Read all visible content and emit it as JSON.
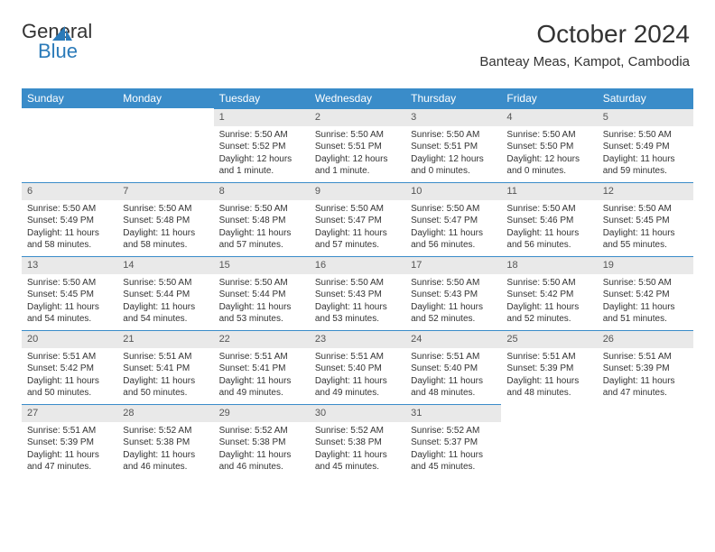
{
  "logo": {
    "text1": "General",
    "text2": "Blue"
  },
  "header": {
    "title": "October 2024",
    "subtitle": "Banteay Meas, Kampot, Cambodia"
  },
  "colors": {
    "header_bg": "#3a8cc9",
    "header_text": "#ffffff",
    "daynum_bg": "#e9e9e9",
    "border": "#3a8cc9",
    "text": "#333333",
    "logo_blue": "#2a7ab9"
  },
  "weekdays": [
    "Sunday",
    "Monday",
    "Tuesday",
    "Wednesday",
    "Thursday",
    "Friday",
    "Saturday"
  ],
  "weeks": [
    [
      {
        "n": "",
        "l": [
          "",
          "",
          ""
        ]
      },
      {
        "n": "",
        "l": [
          "",
          "",
          ""
        ]
      },
      {
        "n": "1",
        "l": [
          "Sunrise: 5:50 AM",
          "Sunset: 5:52 PM",
          "Daylight: 12 hours and 1 minute."
        ]
      },
      {
        "n": "2",
        "l": [
          "Sunrise: 5:50 AM",
          "Sunset: 5:51 PM",
          "Daylight: 12 hours and 1 minute."
        ]
      },
      {
        "n": "3",
        "l": [
          "Sunrise: 5:50 AM",
          "Sunset: 5:51 PM",
          "Daylight: 12 hours and 0 minutes."
        ]
      },
      {
        "n": "4",
        "l": [
          "Sunrise: 5:50 AM",
          "Sunset: 5:50 PM",
          "Daylight: 12 hours and 0 minutes."
        ]
      },
      {
        "n": "5",
        "l": [
          "Sunrise: 5:50 AM",
          "Sunset: 5:49 PM",
          "Daylight: 11 hours and 59 minutes."
        ]
      }
    ],
    [
      {
        "n": "6",
        "l": [
          "Sunrise: 5:50 AM",
          "Sunset: 5:49 PM",
          "Daylight: 11 hours and 58 minutes."
        ]
      },
      {
        "n": "7",
        "l": [
          "Sunrise: 5:50 AM",
          "Sunset: 5:48 PM",
          "Daylight: 11 hours and 58 minutes."
        ]
      },
      {
        "n": "8",
        "l": [
          "Sunrise: 5:50 AM",
          "Sunset: 5:48 PM",
          "Daylight: 11 hours and 57 minutes."
        ]
      },
      {
        "n": "9",
        "l": [
          "Sunrise: 5:50 AM",
          "Sunset: 5:47 PM",
          "Daylight: 11 hours and 57 minutes."
        ]
      },
      {
        "n": "10",
        "l": [
          "Sunrise: 5:50 AM",
          "Sunset: 5:47 PM",
          "Daylight: 11 hours and 56 minutes."
        ]
      },
      {
        "n": "11",
        "l": [
          "Sunrise: 5:50 AM",
          "Sunset: 5:46 PM",
          "Daylight: 11 hours and 56 minutes."
        ]
      },
      {
        "n": "12",
        "l": [
          "Sunrise: 5:50 AM",
          "Sunset: 5:45 PM",
          "Daylight: 11 hours and 55 minutes."
        ]
      }
    ],
    [
      {
        "n": "13",
        "l": [
          "Sunrise: 5:50 AM",
          "Sunset: 5:45 PM",
          "Daylight: 11 hours and 54 minutes."
        ]
      },
      {
        "n": "14",
        "l": [
          "Sunrise: 5:50 AM",
          "Sunset: 5:44 PM",
          "Daylight: 11 hours and 54 minutes."
        ]
      },
      {
        "n": "15",
        "l": [
          "Sunrise: 5:50 AM",
          "Sunset: 5:44 PM",
          "Daylight: 11 hours and 53 minutes."
        ]
      },
      {
        "n": "16",
        "l": [
          "Sunrise: 5:50 AM",
          "Sunset: 5:43 PM",
          "Daylight: 11 hours and 53 minutes."
        ]
      },
      {
        "n": "17",
        "l": [
          "Sunrise: 5:50 AM",
          "Sunset: 5:43 PM",
          "Daylight: 11 hours and 52 minutes."
        ]
      },
      {
        "n": "18",
        "l": [
          "Sunrise: 5:50 AM",
          "Sunset: 5:42 PM",
          "Daylight: 11 hours and 52 minutes."
        ]
      },
      {
        "n": "19",
        "l": [
          "Sunrise: 5:50 AM",
          "Sunset: 5:42 PM",
          "Daylight: 11 hours and 51 minutes."
        ]
      }
    ],
    [
      {
        "n": "20",
        "l": [
          "Sunrise: 5:51 AM",
          "Sunset: 5:42 PM",
          "Daylight: 11 hours and 50 minutes."
        ]
      },
      {
        "n": "21",
        "l": [
          "Sunrise: 5:51 AM",
          "Sunset: 5:41 PM",
          "Daylight: 11 hours and 50 minutes."
        ]
      },
      {
        "n": "22",
        "l": [
          "Sunrise: 5:51 AM",
          "Sunset: 5:41 PM",
          "Daylight: 11 hours and 49 minutes."
        ]
      },
      {
        "n": "23",
        "l": [
          "Sunrise: 5:51 AM",
          "Sunset: 5:40 PM",
          "Daylight: 11 hours and 49 minutes."
        ]
      },
      {
        "n": "24",
        "l": [
          "Sunrise: 5:51 AM",
          "Sunset: 5:40 PM",
          "Daylight: 11 hours and 48 minutes."
        ]
      },
      {
        "n": "25",
        "l": [
          "Sunrise: 5:51 AM",
          "Sunset: 5:39 PM",
          "Daylight: 11 hours and 48 minutes."
        ]
      },
      {
        "n": "26",
        "l": [
          "Sunrise: 5:51 AM",
          "Sunset: 5:39 PM",
          "Daylight: 11 hours and 47 minutes."
        ]
      }
    ],
    [
      {
        "n": "27",
        "l": [
          "Sunrise: 5:51 AM",
          "Sunset: 5:39 PM",
          "Daylight: 11 hours and 47 minutes."
        ]
      },
      {
        "n": "28",
        "l": [
          "Sunrise: 5:52 AM",
          "Sunset: 5:38 PM",
          "Daylight: 11 hours and 46 minutes."
        ]
      },
      {
        "n": "29",
        "l": [
          "Sunrise: 5:52 AM",
          "Sunset: 5:38 PM",
          "Daylight: 11 hours and 46 minutes."
        ]
      },
      {
        "n": "30",
        "l": [
          "Sunrise: 5:52 AM",
          "Sunset: 5:38 PM",
          "Daylight: 11 hours and 45 minutes."
        ]
      },
      {
        "n": "31",
        "l": [
          "Sunrise: 5:52 AM",
          "Sunset: 5:37 PM",
          "Daylight: 11 hours and 45 minutes."
        ]
      },
      {
        "n": "",
        "l": [
          "",
          "",
          ""
        ]
      },
      {
        "n": "",
        "l": [
          "",
          "",
          ""
        ]
      }
    ]
  ]
}
